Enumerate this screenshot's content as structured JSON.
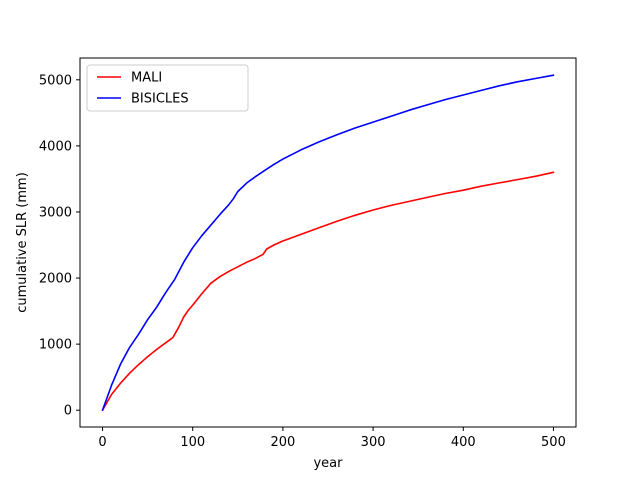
{
  "chart_data": {
    "type": "line",
    "title": "",
    "xlabel": "year",
    "ylabel": "cumulative SLR (mm)",
    "xlim": [
      -25,
      525
    ],
    "ylim": [
      -254,
      5330
    ],
    "xticks": [
      0,
      100,
      200,
      300,
      400,
      500
    ],
    "yticks": [
      0,
      1000,
      2000,
      3000,
      4000,
      5000
    ],
    "grid": false,
    "legend": "top-left",
    "series": [
      {
        "name": "MALI",
        "color": "#ff0000",
        "x": [
          0,
          10,
          20,
          30,
          40,
          50,
          60,
          70,
          78,
          85,
          90,
          95,
          100,
          110,
          120,
          130,
          140,
          150,
          160,
          170,
          178,
          182,
          190,
          200,
          220,
          240,
          260,
          280,
          300,
          320,
          340,
          360,
          380,
          400,
          420,
          440,
          460,
          480,
          500
        ],
        "y": [
          0,
          240,
          410,
          560,
          690,
          810,
          920,
          1020,
          1100,
          1270,
          1410,
          1510,
          1590,
          1760,
          1920,
          2020,
          2100,
          2170,
          2240,
          2300,
          2360,
          2440,
          2500,
          2560,
          2660,
          2760,
          2860,
          2950,
          3030,
          3100,
          3160,
          3220,
          3280,
          3330,
          3390,
          3440,
          3490,
          3540,
          3600
        ]
      },
      {
        "name": "BISICLES",
        "color": "#0000ff",
        "x": [
          0,
          10,
          20,
          30,
          40,
          50,
          60,
          70,
          80,
          90,
          100,
          110,
          120,
          130,
          140,
          145,
          150,
          160,
          170,
          180,
          190,
          200,
          220,
          240,
          260,
          280,
          300,
          320,
          340,
          360,
          380,
          400,
          420,
          440,
          460,
          480,
          500
        ],
        "y": [
          0,
          380,
          700,
          950,
          1150,
          1370,
          1560,
          1780,
          1980,
          2240,
          2460,
          2640,
          2800,
          2960,
          3110,
          3200,
          3310,
          3440,
          3540,
          3630,
          3720,
          3800,
          3940,
          4060,
          4170,
          4270,
          4360,
          4450,
          4540,
          4620,
          4700,
          4770,
          4840,
          4910,
          4970,
          5020,
          5070
        ]
      }
    ]
  }
}
